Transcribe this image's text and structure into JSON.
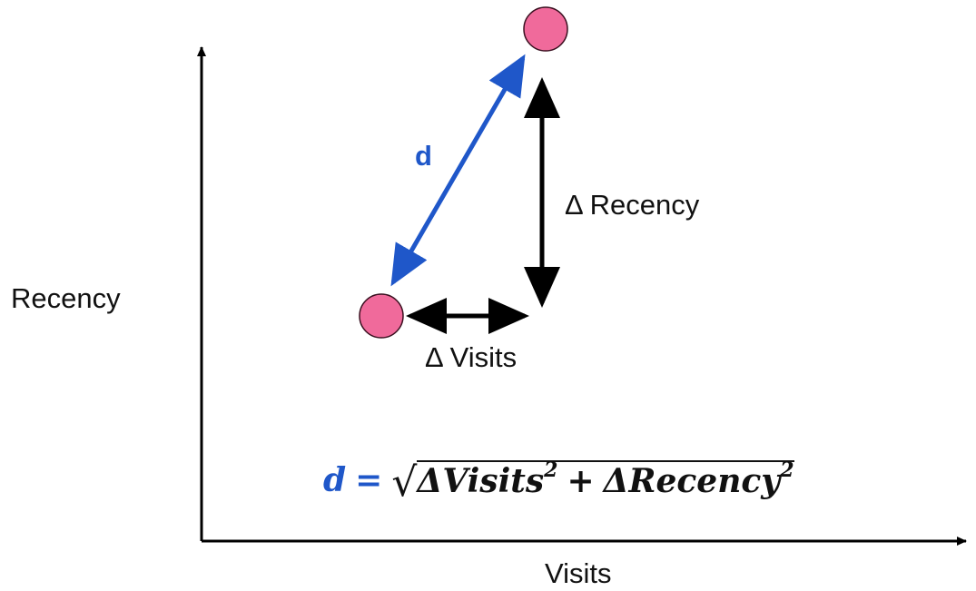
{
  "axes": {
    "x_label": "Visits",
    "y_label": "Recency"
  },
  "annotations": {
    "distance_label": "d",
    "delta_recency_label": "Δ Recency",
    "delta_visits_label": "Δ Visits"
  },
  "formula": {
    "lhs": "d",
    "equals": "=",
    "sqrt": "√",
    "term1": "ΔVisits",
    "term1_exponent": "2",
    "plus": "+",
    "term2": "ΔRecency",
    "term2_exponent": "2"
  },
  "colors": {
    "point_fill": "#f06a9b",
    "point_stroke": "#3a1020",
    "distance_arrow": "#1f57c9",
    "delta_arrows": "#000000",
    "axes": "#000000",
    "text": "#111111"
  }
}
